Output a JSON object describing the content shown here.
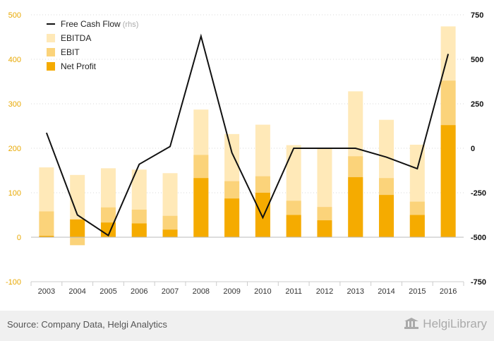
{
  "chart_data": {
    "type": "bar",
    "categories": [
      "2003",
      "2004",
      "2005",
      "2006",
      "2007",
      "2008",
      "2009",
      "2010",
      "2011",
      "2012",
      "2013",
      "2014",
      "2015",
      "2016"
    ],
    "series": [
      {
        "name": "EBITDA",
        "axis": "left",
        "color": "#ffe9b8",
        "values": [
          157,
          140,
          155,
          152,
          144,
          287,
          232,
          253,
          207,
          200,
          328,
          264,
          208,
          474
        ]
      },
      {
        "name": "EBIT",
        "axis": "left",
        "color": "#fbd37a",
        "values": [
          58,
          -18,
          67,
          62,
          48,
          185,
          126,
          137,
          82,
          68,
          182,
          133,
          80,
          352
        ]
      },
      {
        "name": "Net Profit",
        "axis": "left",
        "color": "#f5ab00",
        "values": [
          3,
          40,
          33,
          31,
          17,
          133,
          87,
          100,
          50,
          38,
          135,
          95,
          50,
          252
        ]
      },
      {
        "name": "Free Cash Flow",
        "suffix": "(rhs)",
        "axis": "right",
        "type": "line",
        "color": "#111111",
        "values": [
          87,
          -375,
          -490,
          -90,
          10,
          630,
          -25,
          -390,
          0,
          0,
          0,
          -50,
          -115,
          530
        ]
      }
    ],
    "left_axis": {
      "ylim": [
        -100,
        500
      ],
      "ticks": [
        -100,
        0,
        100,
        200,
        300,
        400,
        500
      ]
    },
    "right_axis": {
      "ylim": [
        -750,
        750
      ],
      "ticks": [
        -750,
        -500,
        -250,
        0,
        250,
        500,
        750
      ]
    },
    "legend": {
      "placement": "top-left"
    },
    "title": "",
    "xlabel": "",
    "ylabel": ""
  },
  "footer": {
    "source": "Source: Company Data, Helgi Analytics",
    "brand": "HelgiLibrary"
  }
}
